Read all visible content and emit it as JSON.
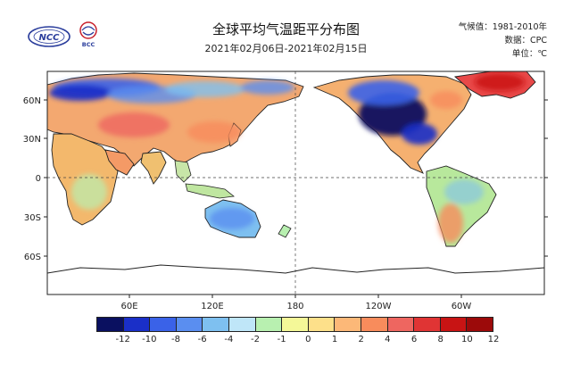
{
  "header": {
    "title": "全球平均气温距平分布图",
    "date_range": "2021年02月06日-2021年02月15日",
    "baseline_label": "气候值：1981-2010年",
    "source_label": "数据：CPC",
    "unit_label": "单位：℃",
    "logo_left_text": "NCC",
    "logo_right_text": "BCC"
  },
  "map": {
    "lat_labels": [
      "60N",
      "30N",
      "0",
      "30S",
      "60S"
    ],
    "lon_labels": [
      "60E",
      "120E",
      "180",
      "120W",
      "60W"
    ]
  },
  "legend": {
    "labels": [
      "-12",
      "-10",
      "-8",
      "-6",
      "-4",
      "-2",
      "-1",
      "0",
      "1",
      "2",
      "4",
      "6",
      "8",
      "10",
      "12"
    ],
    "colors": [
      "#0a1060",
      "#1a2fc8",
      "#3a62e8",
      "#5a8ef0",
      "#7ec0f0",
      "#bfe6f8",
      "#b8f0b0",
      "#f4f898",
      "#fde08a",
      "#fcb878",
      "#f88c5c",
      "#ee6660",
      "#e03434",
      "#c81414",
      "#9c0a0a"
    ]
  }
}
